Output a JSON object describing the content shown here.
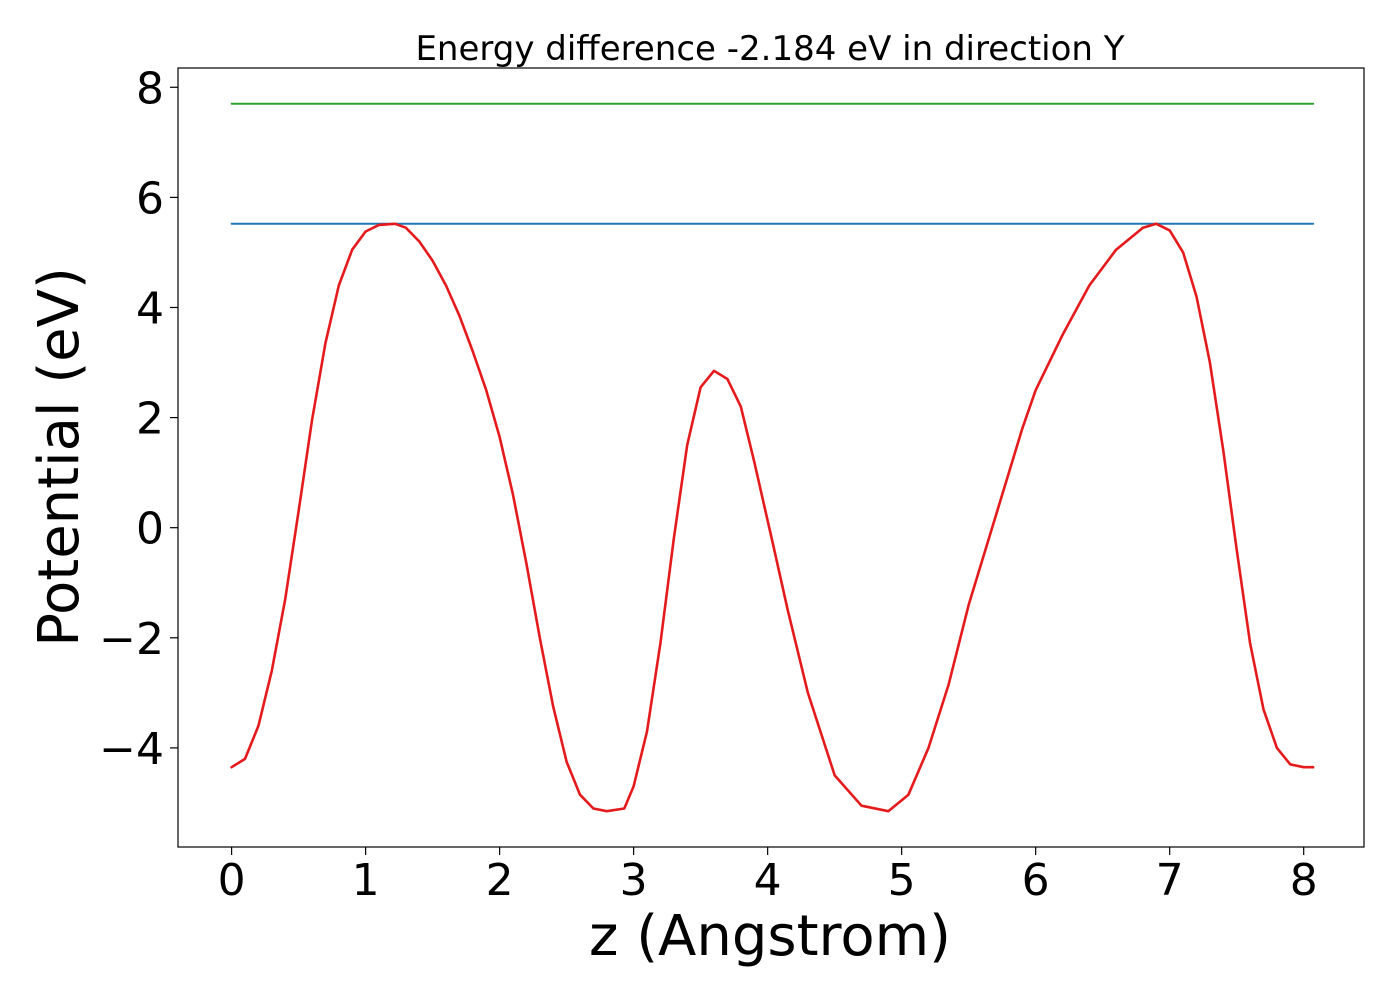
{
  "chart_data": {
    "type": "line",
    "title": "Energy difference -2.184 eV in direction Y",
    "xlabel": "z (Angstrom)",
    "ylabel": "Potential (eV)",
    "xlim": [
      -0.4,
      8.45
    ],
    "ylim": [
      -5.8,
      8.35
    ],
    "x_ticks": [
      0,
      1,
      2,
      3,
      4,
      5,
      6,
      7,
      8
    ],
    "x_tick_labels": [
      "0",
      "1",
      "2",
      "3",
      "4",
      "5",
      "6",
      "7",
      "8"
    ],
    "y_ticks": [
      -4,
      -2,
      0,
      2,
      4,
      6,
      8
    ],
    "y_tick_labels": [
      "−4",
      "−2",
      "0",
      "2",
      "4",
      "6",
      "8"
    ],
    "grid": false,
    "series": [
      {
        "color": "#2ca02c",
        "x": [
          0.0,
          8.07
        ],
        "y": [
          7.7,
          7.7
        ]
      },
      {
        "color": "#1f77b4",
        "x": [
          0.0,
          8.07
        ],
        "y": [
          5.52,
          5.52
        ]
      },
      {
        "color": "#e41a1c",
        "x": [
          0.0,
          0.1,
          0.2,
          0.3,
          0.4,
          0.5,
          0.6,
          0.7,
          0.8,
          0.9,
          1.0,
          1.1,
          1.22,
          1.3,
          1.4,
          1.5,
          1.6,
          1.7,
          1.8,
          1.9,
          2.0,
          2.1,
          2.2,
          2.3,
          2.4,
          2.5,
          2.6,
          2.7,
          2.8,
          2.93,
          3.0,
          3.1,
          3.2,
          3.3,
          3.4,
          3.5,
          3.6,
          3.7,
          3.8,
          3.9,
          4.04,
          4.15,
          4.3,
          4.5,
          4.7,
          4.9,
          5.05,
          5.2,
          5.35,
          5.5,
          5.7,
          5.9,
          6.0,
          6.2,
          6.4,
          6.6,
          6.8,
          6.9,
          7.0,
          7.1,
          7.2,
          7.3,
          7.4,
          7.5,
          7.6,
          7.7,
          7.8,
          7.9,
          8.0,
          8.07
        ],
        "y": [
          -4.35,
          -4.2,
          -3.6,
          -2.6,
          -1.3,
          0.3,
          1.95,
          3.35,
          4.4,
          5.05,
          5.38,
          5.5,
          5.52,
          5.45,
          5.2,
          4.85,
          4.4,
          3.85,
          3.2,
          2.5,
          1.65,
          0.6,
          -0.65,
          -2.0,
          -3.25,
          -4.25,
          -4.85,
          -5.1,
          -5.15,
          -5.1,
          -4.7,
          -3.7,
          -2.1,
          -0.2,
          1.5,
          2.55,
          2.85,
          2.7,
          2.2,
          1.2,
          -0.3,
          -1.5,
          -3.0,
          -4.5,
          -5.05,
          -5.15,
          -4.85,
          -4.0,
          -2.85,
          -1.4,
          0.2,
          1.8,
          2.5,
          3.5,
          4.4,
          5.05,
          5.45,
          5.52,
          5.4,
          5.0,
          4.2,
          3.0,
          1.4,
          -0.4,
          -2.1,
          -3.3,
          -4.0,
          -4.3,
          -4.35,
          -4.35
        ]
      }
    ]
  }
}
